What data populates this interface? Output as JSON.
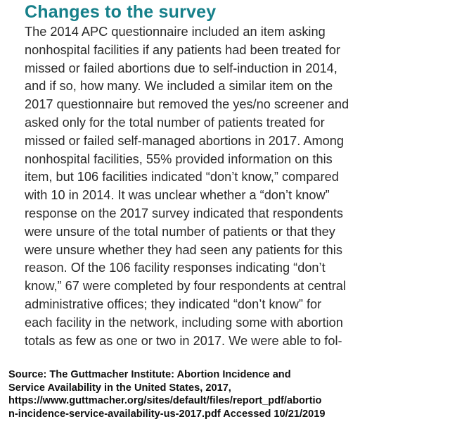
{
  "section": {
    "heading": "Changes to the survey",
    "heading_color": "#17808a",
    "body_lines": [
      "The 2014 APC questionnaire included an item asking",
      "nonhospital facilities if any patients had been treated for",
      "missed or failed abortions due to self-induction in 2014,",
      "and if so, how many. We included a similar item on the",
      "2017 questionnaire but removed the yes/no screener and",
      "asked only for the total number of patients treated for",
      "missed or failed self-managed abortions in 2017. Among",
      "nonhospital facilities, 55% provided information on this",
      "item, but 106 facilities indicated “don’t know,” compared",
      "with 10 in 2014. It was unclear whether a “don’t know”",
      "response on the 2017 survey indicated that respondents",
      "were unsure of the total number of patients or that they",
      "were unsure whether they had seen any patients for this",
      "reason. Of the 106 facility responses indicating “don’t",
      "know,” 67 were completed by four respondents at central",
      "administrative offices; they indicated “don’t know” for",
      "each facility in the network, including some with abortion",
      "totals as few as one or two in 2017. We were able to fol-"
    ]
  },
  "source": {
    "lines": [
      "Source: The Guttmacher Institute: Abortion Incidence and",
      "Service Availability in the United States, 2017,",
      "https://www.guttmacher.org/sites/default/files/report_pdf/abortio",
      "n-incidence-service-availability-us-2017.pdf Accessed 10/21/2019"
    ]
  }
}
